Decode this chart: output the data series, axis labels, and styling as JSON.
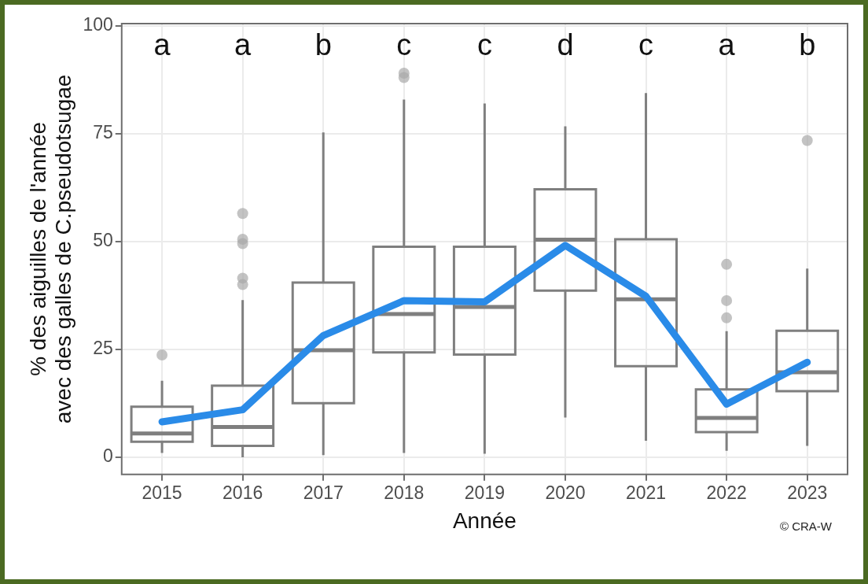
{
  "chart_data": {
    "type": "box",
    "xlabel": "Année",
    "ylabel": "% des aiguilles de l'année\navec des galles de C.pseudotsugae",
    "categories": [
      "2015",
      "2016",
      "2017",
      "2018",
      "2019",
      "2020",
      "2021",
      "2022",
      "2023"
    ],
    "series": [
      {
        "color": "#7f7f7f",
        "boxes": [
          {
            "low": 1,
            "q1": 3.6,
            "median": 5.5,
            "q3": 11.7,
            "high": 17.7,
            "outliers": [
              23.7
            ]
          },
          {
            "low": 0,
            "q1": 2.6,
            "median": 7,
            "q3": 16.6,
            "high": 36.4,
            "outliers": [
              56.5,
              50.5,
              49.5,
              41.5,
              40
            ]
          },
          {
            "low": 0.5,
            "q1": 12.5,
            "median": 24.8,
            "q3": 40.5,
            "high": 75.3
          },
          {
            "low": 1,
            "q1": 24.3,
            "median": 33.2,
            "q3": 48.8,
            "high": 82.9,
            "outliers": [
              89,
              88
            ]
          },
          {
            "low": 0.8,
            "q1": 23.8,
            "median": 34.8,
            "q3": 48.8,
            "high": 82
          },
          {
            "low": 9.2,
            "q1": 38.6,
            "median": 50.4,
            "q3": 62.1,
            "high": 76.7
          },
          {
            "low": 3.8,
            "q1": 21.1,
            "median": 36.6,
            "q3": 50.5,
            "high": 84.4
          },
          {
            "low": 1.5,
            "q1": 5.8,
            "median": 9.1,
            "q3": 15.7,
            "high": 29.2,
            "outliers": [
              44.7,
              36.3,
              32.3
            ]
          },
          {
            "low": 2.6,
            "q1": 15.3,
            "median": 19.7,
            "q3": 29.3,
            "high": 43.7,
            "outliers": [
              73.4
            ]
          }
        ]
      },
      {
        "type": "line",
        "color": "#2a8be8",
        "values": [
          8.2,
          11,
          28.2,
          36.3,
          36,
          49.1,
          37.3,
          12.3,
          22
        ]
      }
    ],
    "ylim": [
      -4,
      100.5
    ],
    "yticks": [
      0,
      25,
      50,
      75,
      100
    ],
    "grid": true,
    "annotations": [
      "a",
      "a",
      "b",
      "c",
      "c",
      "d",
      "c",
      "a",
      "b",
      "© CRA-W"
    ]
  }
}
